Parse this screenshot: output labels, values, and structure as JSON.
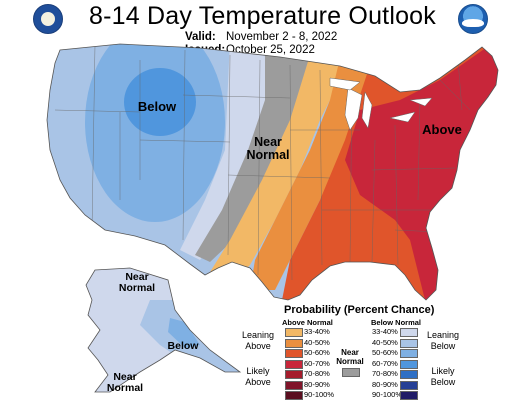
{
  "header": {
    "title": "8-14 Day Temperature Outlook",
    "valid_label": "Valid:",
    "valid_value": "November 2 - 8, 2022",
    "issued_label": "Issued:",
    "issued_value": "October 25, 2022"
  },
  "logos": {
    "left": "doc-seal-icon",
    "right": "noaa-logo-icon"
  },
  "map_labels": {
    "below_west": "Below",
    "near_normal_central": "Near\nNormal",
    "above_east": "Above",
    "alaska_near_normal_north": "Near\nNormal",
    "alaska_below": "Below",
    "alaska_near_normal_south": "Near\nNormal"
  },
  "legend": {
    "title": "Probability (Percent Chance)",
    "above_header": "Above Normal",
    "below_header": "Below Normal",
    "near_normal_label": "Near\nNormal",
    "leaning_above": "Leaning\nAbove",
    "likely_above": "Likely\nAbove",
    "leaning_below": "Leaning\nBelow",
    "likely_below": "Likely\nBelow",
    "ranges": [
      "33-40%",
      "40-50%",
      "50-60%",
      "60-70%",
      "70-80%",
      "80-90%",
      "90-100%"
    ],
    "above_colors": [
      "#f2b866",
      "#ea8f3f",
      "#e0552b",
      "#c8263a",
      "#a51c2c",
      "#80142a",
      "#5a0e1f"
    ],
    "below_colors": [
      "#cfd8ec",
      "#a9c4e6",
      "#7fb0e3",
      "#5096dd",
      "#2f6fc4",
      "#263f95",
      "#201b66"
    ],
    "near_normal_color": "#9c9c9c"
  }
}
